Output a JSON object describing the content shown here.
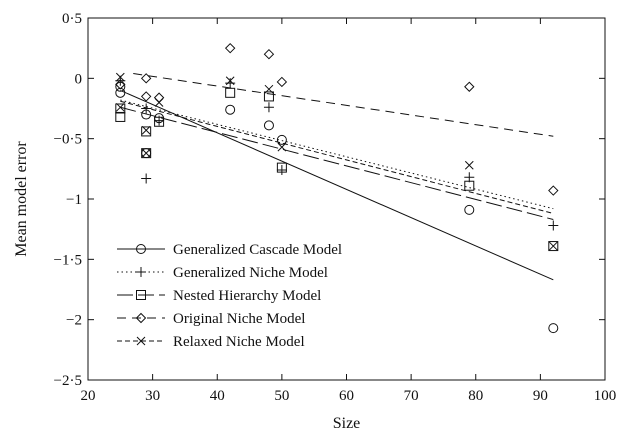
{
  "chart_data": {
    "type": "scatter",
    "title": "",
    "xlabel": "Size",
    "ylabel": "Mean model error",
    "xlim": [
      20,
      100
    ],
    "ylim": [
      -2.5,
      0.5
    ],
    "x_ticks": [
      20,
      30,
      40,
      50,
      60,
      70,
      80,
      90,
      100
    ],
    "x_tick_labels": [
      "20",
      "30",
      "40",
      "50",
      "60",
      "70",
      "80",
      "90",
      "100"
    ],
    "y_ticks": [
      0.5,
      0,
      -0.5,
      -1,
      -1.5,
      -2,
      -2.5
    ],
    "y_tick_labels": [
      "0·5",
      "0",
      "−0·5",
      "−1",
      "−1·5",
      "−2",
      "−2·5"
    ],
    "grid": false,
    "legend_position": "bottom-left",
    "series": [
      {
        "name": "Generalized Cascade Model",
        "marker": "circle",
        "line_style": "solid",
        "points": [
          [
            25,
            -0.07
          ],
          [
            25,
            -0.12
          ],
          [
            29,
            -0.3
          ],
          [
            29,
            -0.62
          ],
          [
            31,
            -0.33
          ],
          [
            42,
            -0.26
          ],
          [
            48,
            -0.39
          ],
          [
            50,
            -0.51
          ],
          [
            79,
            -1.09
          ],
          [
            92,
            -2.07
          ]
        ],
        "fit": [
          [
            25,
            -0.1
          ],
          [
            92,
            -1.67
          ]
        ]
      },
      {
        "name": "Generalized Niche Model",
        "marker": "plus",
        "line_style": "dotted",
        "points": [
          [
            25,
            -0.02
          ],
          [
            29,
            -0.25
          ],
          [
            29,
            -0.83
          ],
          [
            31,
            -0.35
          ],
          [
            42,
            -0.04
          ],
          [
            48,
            -0.24
          ],
          [
            50,
            -0.76
          ],
          [
            79,
            -0.82
          ],
          [
            92,
            -1.22
          ]
        ],
        "fit": [
          [
            25,
            -0.18
          ],
          [
            92,
            -1.08
          ]
        ]
      },
      {
        "name": "Nested Hierarchy Model",
        "marker": "square",
        "line_style": "longdash",
        "points": [
          [
            25,
            -0.25
          ],
          [
            25,
            -0.32
          ],
          [
            29,
            -0.44
          ],
          [
            29,
            -0.62
          ],
          [
            31,
            -0.36
          ],
          [
            42,
            -0.12
          ],
          [
            48,
            -0.15
          ],
          [
            50,
            -0.74
          ],
          [
            79,
            -0.89
          ],
          [
            92,
            -1.39
          ]
        ],
        "fit": [
          [
            25,
            -0.24
          ],
          [
            92,
            -1.17
          ]
        ]
      },
      {
        "name": "Original Niche Model",
        "marker": "diamond",
        "line_style": "dashed",
        "points": [
          [
            25,
            -0.05
          ],
          [
            29,
            0.0
          ],
          [
            29,
            -0.15
          ],
          [
            31,
            -0.16
          ],
          [
            42,
            0.25
          ],
          [
            48,
            0.2
          ],
          [
            50,
            -0.03
          ],
          [
            79,
            -0.07
          ],
          [
            92,
            -0.93
          ]
        ],
        "fit": [
          [
            27,
            0.04
          ],
          [
            92,
            -0.48
          ]
        ]
      },
      {
        "name": "Relaxed Niche Model",
        "marker": "cross",
        "line_style": "shortdash",
        "points": [
          [
            25,
            0.01
          ],
          [
            25,
            -0.24
          ],
          [
            29,
            -0.43
          ],
          [
            29,
            -0.62
          ],
          [
            31,
            -0.2
          ],
          [
            42,
            -0.02
          ],
          [
            48,
            -0.09
          ],
          [
            50,
            -0.57
          ],
          [
            79,
            -0.72
          ],
          [
            92,
            -1.39
          ]
        ],
        "fit": [
          [
            25,
            -0.19
          ],
          [
            92,
            -1.12
          ]
        ]
      }
    ]
  }
}
